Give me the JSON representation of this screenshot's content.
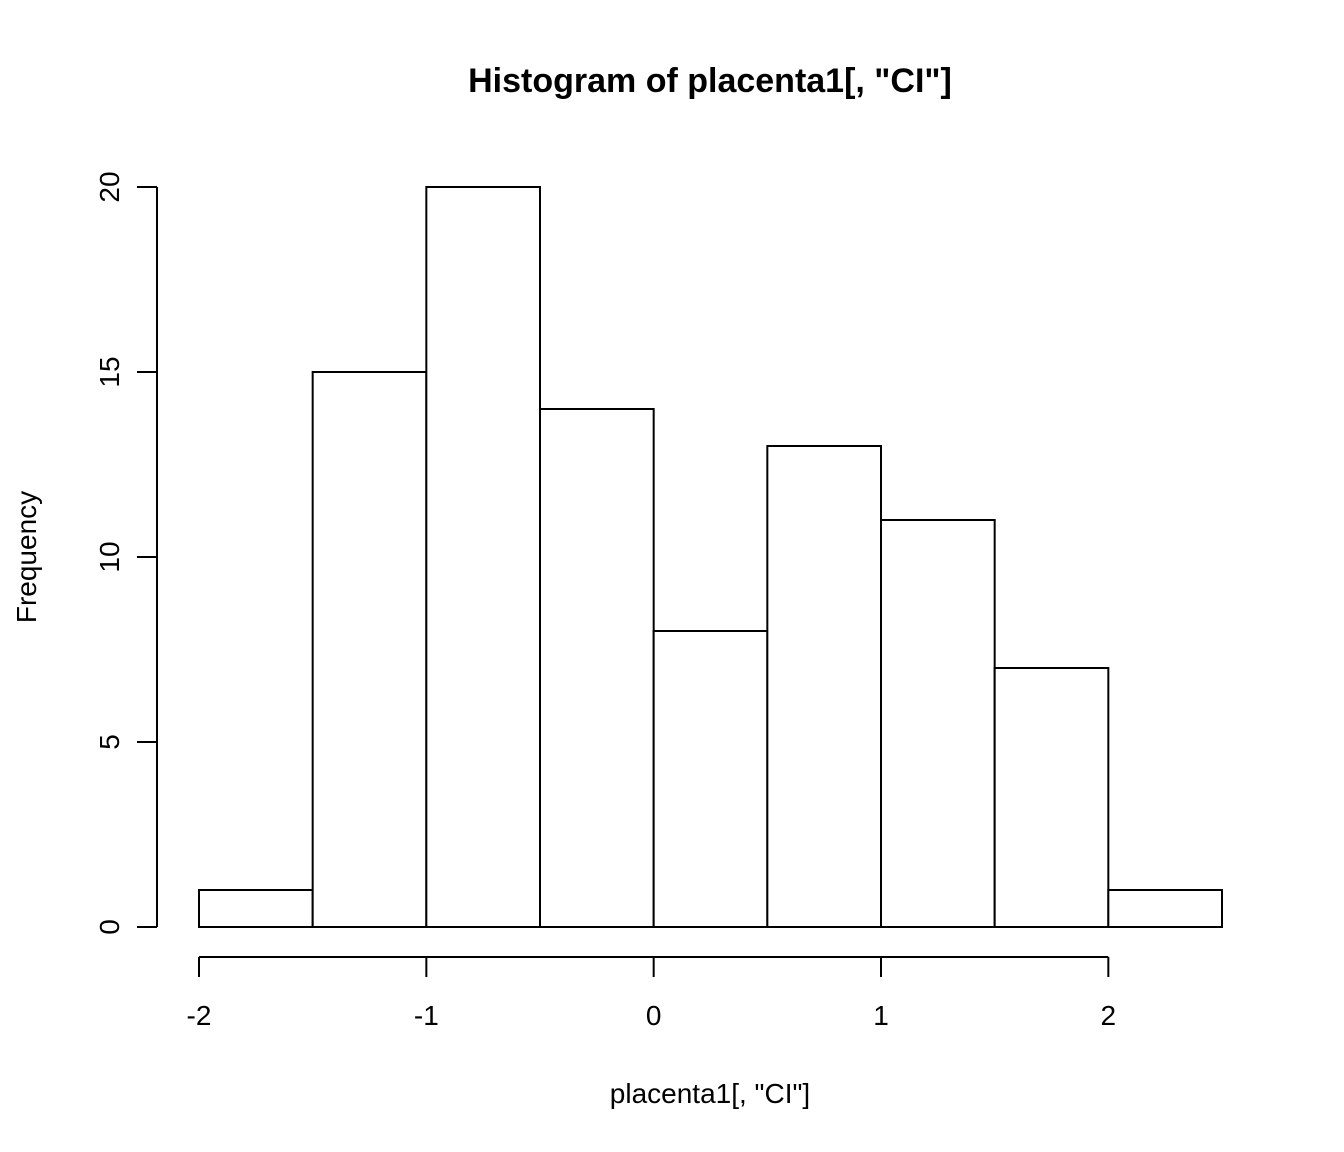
{
  "chart_data": {
    "type": "bar",
    "subtype": "histogram",
    "title": "Histogram of placenta1[, \"CI\"]",
    "xlabel": "placenta1[, \"CI\"]",
    "ylabel": "Frequency",
    "bin_edges": [
      -2,
      -1.5,
      -1,
      -0.5,
      0,
      0.5,
      1,
      1.5,
      2,
      2.5
    ],
    "values": [
      1,
      15,
      20,
      14,
      8,
      13,
      11,
      7,
      1
    ],
    "xlim": [
      -2,
      2.5
    ],
    "ylim": [
      0,
      20
    ],
    "x_ticks": [
      -2,
      -1,
      0,
      1,
      2
    ],
    "x_tick_labels": [
      "-2",
      "-1",
      "0",
      "1",
      "2"
    ],
    "y_ticks": [
      0,
      5,
      10,
      15,
      20
    ],
    "y_tick_labels": [
      "0",
      "5",
      "10",
      "15",
      "20"
    ],
    "grid": false,
    "legend": "none",
    "bar_fill": "#ffffff",
    "bar_stroke": "#000000"
  }
}
